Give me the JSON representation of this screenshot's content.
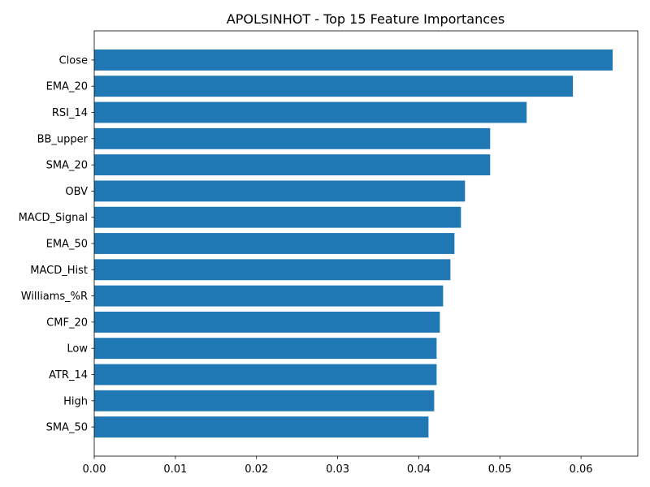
{
  "chart_data": {
    "type": "bar",
    "orientation": "horizontal",
    "title": "APOLSINHOT - Top 15 Feature Importances",
    "xlabel": "",
    "ylabel": "",
    "categories": [
      "Close",
      "EMA_20",
      "RSI_14",
      "BB_upper",
      "SMA_20",
      "OBV",
      "MACD_Signal",
      "EMA_50",
      "MACD_Hist",
      "Williams_%R",
      "CMF_20",
      "Low",
      "ATR_14",
      "High",
      "SMA_50"
    ],
    "values": [
      0.0639,
      0.059,
      0.0533,
      0.0488,
      0.0488,
      0.0457,
      0.0452,
      0.0444,
      0.0439,
      0.043,
      0.0426,
      0.0422,
      0.0422,
      0.0419,
      0.0412
    ],
    "xlim": [
      0,
      0.067
    ],
    "xticks": [
      0.0,
      0.01,
      0.02,
      0.03,
      0.04,
      0.05,
      0.06
    ],
    "xtick_labels": [
      "0.00",
      "0.01",
      "0.02",
      "0.03",
      "0.04",
      "0.05",
      "0.06"
    ],
    "grid": false,
    "bar_color": "#1f77b4"
  }
}
